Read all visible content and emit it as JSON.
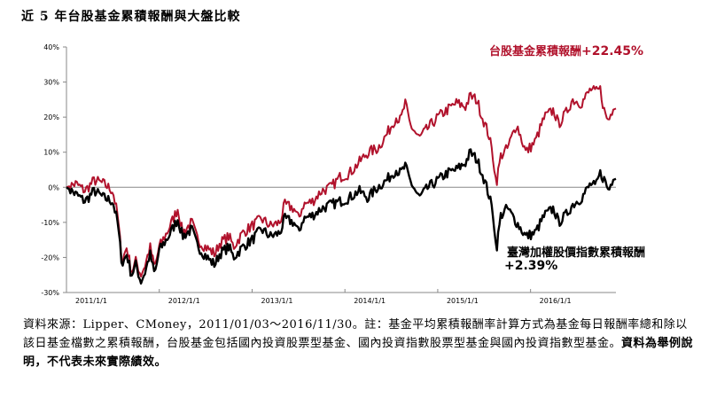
{
  "title": "近 5 年台股基金累積報酬與大盤比較",
  "chart_data": {
    "type": "line",
    "y_ticks": [
      "40%",
      "30%",
      "20%",
      "10%",
      "0%",
      "-10%",
      "-20%",
      "-30%"
    ],
    "y_tick_values": [
      40,
      30,
      20,
      10,
      0,
      -10,
      -20,
      -30
    ],
    "ylim": [
      -30,
      40
    ],
    "x_ticks": [
      "2011/1/1",
      "2012/1/1",
      "2013/1/1",
      "2014/1/1",
      "2015/1/1",
      "2016/1/1"
    ],
    "x_tick_years": [
      2011,
      2012,
      2013,
      2014,
      2015,
      2016
    ],
    "xlim": [
      2011.0,
      2016.92
    ],
    "grid": false,
    "series": [
      {
        "name": "台股基金累積報酬",
        "color": "#b1122c",
        "points": [
          [
            2011.0,
            0
          ],
          [
            2011.1,
            1
          ],
          [
            2011.2,
            -1
          ],
          [
            2011.3,
            2
          ],
          [
            2011.4,
            1
          ],
          [
            2011.5,
            -1
          ],
          [
            2011.55,
            -8
          ],
          [
            2011.6,
            -21
          ],
          [
            2011.65,
            -17
          ],
          [
            2011.7,
            -24
          ],
          [
            2011.75,
            -21
          ],
          [
            2011.8,
            -25
          ],
          [
            2011.85,
            -22
          ],
          [
            2011.9,
            -17
          ],
          [
            2011.95,
            -23
          ],
          [
            2012.0,
            -17
          ],
          [
            2012.1,
            -12
          ],
          [
            2012.2,
            -6
          ],
          [
            2012.25,
            -13
          ],
          [
            2012.35,
            -10
          ],
          [
            2012.4,
            -14
          ],
          [
            2012.45,
            -16
          ],
          [
            2012.55,
            -18
          ],
          [
            2012.6,
            -19
          ],
          [
            2012.65,
            -16
          ],
          [
            2012.75,
            -14
          ],
          [
            2012.8,
            -17
          ],
          [
            2012.9,
            -13
          ],
          [
            2013.0,
            -11
          ],
          [
            2013.1,
            -9
          ],
          [
            2013.2,
            -11
          ],
          [
            2013.3,
            -10
          ],
          [
            2013.35,
            -5
          ],
          [
            2013.45,
            -6
          ],
          [
            2013.5,
            -9
          ],
          [
            2013.55,
            -5
          ],
          [
            2013.65,
            -4
          ],
          [
            2013.75,
            -1
          ],
          [
            2013.85,
            0
          ],
          [
            2013.95,
            3
          ],
          [
            2014.05,
            4
          ],
          [
            2014.15,
            7
          ],
          [
            2014.25,
            10
          ],
          [
            2014.35,
            11
          ],
          [
            2014.45,
            15
          ],
          [
            2014.55,
            20
          ],
          [
            2014.6,
            19
          ],
          [
            2014.65,
            24
          ],
          [
            2014.7,
            18
          ],
          [
            2014.8,
            14
          ],
          [
            2014.9,
            17
          ],
          [
            2015.0,
            20
          ],
          [
            2015.1,
            22
          ],
          [
            2015.2,
            24
          ],
          [
            2015.3,
            23
          ],
          [
            2015.35,
            26
          ],
          [
            2015.42,
            25
          ],
          [
            2015.48,
            20
          ],
          [
            2015.55,
            15
          ],
          [
            2015.6,
            8
          ],
          [
            2015.63,
            1
          ],
          [
            2015.68,
            9
          ],
          [
            2015.75,
            11
          ],
          [
            2015.85,
            18
          ],
          [
            2015.95,
            10
          ],
          [
            2016.05,
            13
          ],
          [
            2016.15,
            20
          ],
          [
            2016.25,
            22
          ],
          [
            2016.3,
            18
          ],
          [
            2016.38,
            21
          ],
          [
            2016.45,
            25
          ],
          [
            2016.55,
            24
          ],
          [
            2016.65,
            28
          ],
          [
            2016.7,
            27
          ],
          [
            2016.75,
            28
          ],
          [
            2016.8,
            21
          ],
          [
            2016.84,
            19
          ],
          [
            2016.88,
            22
          ],
          [
            2016.92,
            22.45
          ]
        ]
      },
      {
        "name": "臺灣加權股價指數累積報酬",
        "color": "#000000",
        "points": [
          [
            2011.0,
            0
          ],
          [
            2011.1,
            -2
          ],
          [
            2011.2,
            -4
          ],
          [
            2011.3,
            -1
          ],
          [
            2011.4,
            -3
          ],
          [
            2011.5,
            -4
          ],
          [
            2011.55,
            -10
          ],
          [
            2011.6,
            -22
          ],
          [
            2011.65,
            -19
          ],
          [
            2011.7,
            -25
          ],
          [
            2011.75,
            -22
          ],
          [
            2011.8,
            -27
          ],
          [
            2011.85,
            -24
          ],
          [
            2011.9,
            -19
          ],
          [
            2011.95,
            -25
          ],
          [
            2012.0,
            -18
          ],
          [
            2012.1,
            -14
          ],
          [
            2012.2,
            -9
          ],
          [
            2012.25,
            -14
          ],
          [
            2012.35,
            -12
          ],
          [
            2012.4,
            -16
          ],
          [
            2012.45,
            -18
          ],
          [
            2012.55,
            -21
          ],
          [
            2012.6,
            -22
          ],
          [
            2012.65,
            -19
          ],
          [
            2012.75,
            -17
          ],
          [
            2012.8,
            -20
          ],
          [
            2012.9,
            -17
          ],
          [
            2013.0,
            -15
          ],
          [
            2013.1,
            -12
          ],
          [
            2013.2,
            -14
          ],
          [
            2013.3,
            -13
          ],
          [
            2013.35,
            -9
          ],
          [
            2013.45,
            -10
          ],
          [
            2013.5,
            -13
          ],
          [
            2013.55,
            -9
          ],
          [
            2013.65,
            -8
          ],
          [
            2013.75,
            -6
          ],
          [
            2013.85,
            -5
          ],
          [
            2013.95,
            -4
          ],
          [
            2014.05,
            -3
          ],
          [
            2014.15,
            -1
          ],
          [
            2014.25,
            -3
          ],
          [
            2014.35,
            0
          ],
          [
            2014.45,
            2
          ],
          [
            2014.55,
            5
          ],
          [
            2014.6,
            4
          ],
          [
            2014.65,
            6
          ],
          [
            2014.7,
            2
          ],
          [
            2014.8,
            -3
          ],
          [
            2014.9,
            0
          ],
          [
            2015.0,
            2
          ],
          [
            2015.1,
            4
          ],
          [
            2015.2,
            5
          ],
          [
            2015.3,
            7
          ],
          [
            2015.35,
            10
          ],
          [
            2015.42,
            8
          ],
          [
            2015.48,
            4
          ],
          [
            2015.55,
            -2
          ],
          [
            2015.6,
            -8
          ],
          [
            2015.63,
            -18
          ],
          [
            2015.68,
            -8
          ],
          [
            2015.75,
            -6
          ],
          [
            2015.85,
            -10
          ],
          [
            2015.95,
            -14
          ],
          [
            2016.05,
            -13
          ],
          [
            2016.15,
            -8
          ],
          [
            2016.25,
            -6
          ],
          [
            2016.3,
            -10
          ],
          [
            2016.38,
            -8
          ],
          [
            2016.45,
            -5
          ],
          [
            2016.55,
            -3
          ],
          [
            2016.65,
            1
          ],
          [
            2016.7,
            0
          ],
          [
            2016.75,
            4
          ],
          [
            2016.8,
            2
          ],
          [
            2016.84,
            -1
          ],
          [
            2016.88,
            2
          ],
          [
            2016.92,
            2.39
          ]
        ]
      }
    ]
  },
  "annotations": {
    "fund_label": "台股基金累積報酬",
    "fund_value": "+22.45%",
    "index_label": "臺灣加權股價指數累積報酬",
    "index_value": "+2.39%"
  },
  "note": {
    "text": "資料來源：Lipper、CMoney，2011/01/03～2016/11/30。註：基金平均累積報酬率計算方式為基金每日報酬率總和除以該日基金檔數之累積報酬，台股基金包括國內投資股票型基金、國內投資指數股票型基金與國內投資指數型基金。",
    "bold": "資料為舉例說明，不代表未來實際績效。"
  }
}
